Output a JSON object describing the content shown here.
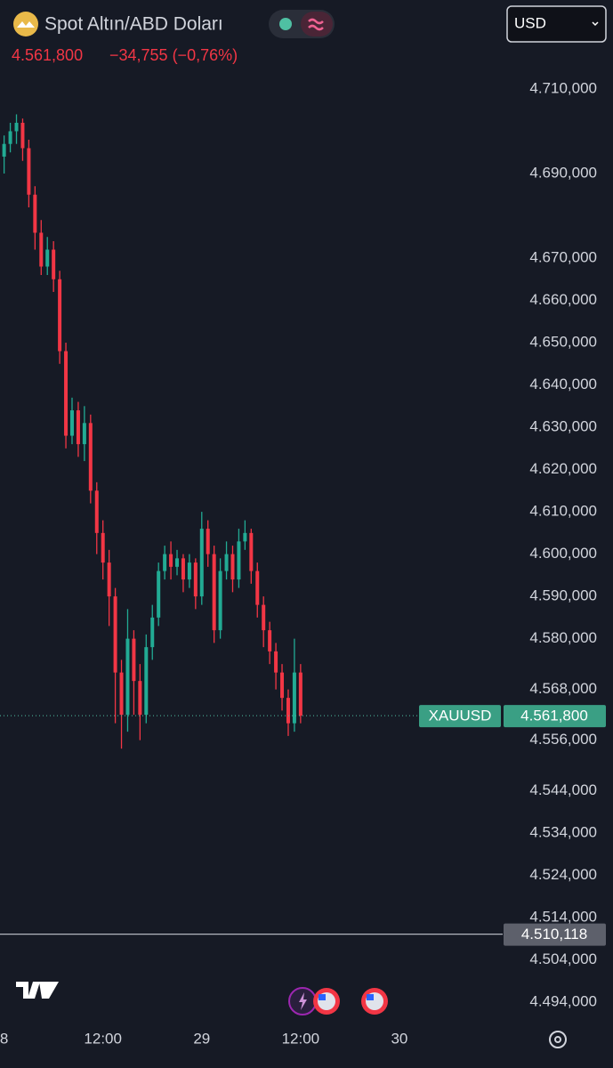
{
  "header": {
    "title": "Spot Altın/ABD Doları",
    "change": "−34,755 (−0,76%)",
    "currency": "USD"
  },
  "chart_data": {
    "type": "candlestick",
    "symbol": "XAUUSD",
    "x": [
      0,
      0.75,
      1.5,
      2.25,
      3,
      3.75,
      4.5,
      5.25,
      6,
      6.75,
      7.5,
      8.25,
      9,
      9.75,
      10.5,
      11.25,
      12,
      12.75,
      13.5,
      14.25,
      15,
      15.75,
      16.5,
      17.25,
      18,
      18.75,
      19.5,
      20.25,
      21,
      21.75,
      22.5,
      23.25,
      24,
      24.75,
      25.5,
      26.25,
      27,
      27.75,
      28.5,
      29.25,
      30,
      30.75,
      31.5,
      32.25,
      33,
      33.75,
      34.5,
      35.25,
      36
    ],
    "open": [
      4694,
      4697,
      4700,
      4702,
      4696,
      4685,
      4676,
      4668,
      4672,
      4665,
      4648,
      4628,
      4634,
      4626,
      4631,
      4615,
      4605,
      4598,
      4590,
      4572,
      4562,
      4580,
      4570,
      4562,
      4578,
      4585,
      4596,
      4600,
      4597,
      4599,
      4594,
      4598,
      4590,
      4606,
      4600,
      4582,
      4596,
      4600,
      4594,
      4603,
      4605,
      4596,
      4588,
      4582,
      4577,
      4572,
      4566,
      4560,
      4572
    ],
    "high": [
      4699,
      4702,
      4704,
      4703,
      4698,
      4687,
      4679,
      4675,
      4674,
      4667,
      4650,
      4637,
      4636,
      4635,
      4633,
      4617,
      4608,
      4601,
      4592,
      4575,
      4587,
      4582,
      4574,
      4581,
      4588,
      4598,
      4602,
      4603,
      4601,
      4600,
      4600,
      4599,
      4610,
      4608,
      4602,
      4599,
      4603,
      4602,
      4606,
      4608,
      4606,
      4598,
      4590,
      4584,
      4579,
      4574,
      4568,
      4580,
      4574
    ],
    "low": [
      4690,
      4695,
      4697,
      4693,
      4682,
      4672,
      4666,
      4666,
      4662,
      4645,
      4625,
      4626,
      4623,
      4622,
      4612,
      4600,
      4594,
      4583,
      4560,
      4554,
      4558,
      4562,
      4556,
      4560,
      4575,
      4583,
      4594,
      4594,
      4595,
      4591,
      4592,
      4587,
      4588,
      4597,
      4579,
      4580,
      4594,
      4591,
      4592,
      4601,
      4593,
      4585,
      4578,
      4574,
      4568,
      4563,
      4557,
      4558,
      4560
    ],
    "close": [
      4697,
      4700,
      4702,
      4696,
      4685,
      4676,
      4668,
      4672,
      4665,
      4648,
      4628,
      4634,
      4626,
      4631,
      4615,
      4605,
      4598,
      4590,
      4572,
      4562,
      4580,
      4570,
      4562,
      4578,
      4585,
      4596,
      4600,
      4597,
      4599,
      4594,
      4598,
      4590,
      4606,
      4600,
      4582,
      4596,
      4600,
      4594,
      4603,
      4605,
      4596,
      4588,
      4582,
      4577,
      4572,
      4566,
      4560,
      4572,
      4561.8
    ],
    "colors": {
      "up": "#22ab94",
      "down": "#f23645"
    },
    "last_price": {
      "value": 4561.8,
      "label": "4.561,800"
    },
    "level": {
      "value": 4510.118,
      "label": "4.510,118"
    },
    "xlim": [
      -0.5,
      60
    ],
    "xticks": [
      {
        "value": 0,
        "label": "8"
      },
      {
        "value": 12,
        "label": "12:00"
      },
      {
        "value": 24,
        "label": "29"
      },
      {
        "value": 36,
        "label": "12:00"
      },
      {
        "value": 48,
        "label": "30"
      }
    ],
    "ylim": [
      4489,
      4714.2
    ],
    "yticks": [
      {
        "value": 4710,
        "label": "4.710,000"
      },
      {
        "value": 4690,
        "label": "4.690,000"
      },
      {
        "value": 4670,
        "label": "4.670,000"
      },
      {
        "value": 4660,
        "label": "4.660,000"
      },
      {
        "value": 4650,
        "label": "4.650,000"
      },
      {
        "value": 4640,
        "label": "4.640,000"
      },
      {
        "value": 4630,
        "label": "4.630,000"
      },
      {
        "value": 4620,
        "label": "4.620,000"
      },
      {
        "value": 4610,
        "label": "4.610,000"
      },
      {
        "value": 4600,
        "label": "4.600,000"
      },
      {
        "value": 4590,
        "label": "4.590,000"
      },
      {
        "value": 4580,
        "label": "4.580,000"
      },
      {
        "value": 4568,
        "label": "4.568,000"
      },
      {
        "value": 4556,
        "label": "4.556,000"
      },
      {
        "value": 4544,
        "label": "4.544,000"
      },
      {
        "value": 4534,
        "label": "4.534,000"
      },
      {
        "value": 4524,
        "label": "4.524,000"
      },
      {
        "value": 4514,
        "label": "4.514,000"
      },
      {
        "value": 4504,
        "label": "4.504,000"
      },
      {
        "value": 4494,
        "label": "4.494,000"
      }
    ]
  }
}
